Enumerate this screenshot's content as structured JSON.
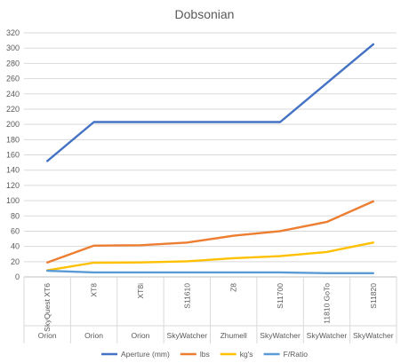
{
  "chart_data": {
    "type": "line",
    "title": "Dobsonian",
    "categories": [
      "SkyQuest XT6",
      "XT8",
      "XT8i",
      "S11610",
      "Z8",
      "S11700",
      "11810 GoTo",
      "S11820"
    ],
    "brands": [
      "Orion",
      "Orion",
      "Orion",
      "SkyWatcher",
      "Zhumell",
      "SkyWatcher",
      "SkyWatcher",
      "SkyWatcher"
    ],
    "ylim": [
      0,
      320
    ],
    "ytick_step": 20,
    "grid": true,
    "legend_position": "bottom",
    "series": [
      {
        "name": "Aperture (mm)",
        "color": "#4472C4",
        "values": [
          152,
          203,
          203,
          203,
          203,
          203,
          254,
          305
        ]
      },
      {
        "name": "lbs",
        "color": "#ED7D31",
        "values": [
          19,
          41,
          41.5,
          45,
          54,
          60,
          72,
          99
        ]
      },
      {
        "name": "kg's",
        "color": "#FFC000",
        "values": [
          8.6,
          18.6,
          19,
          20.5,
          24.5,
          27.2,
          32.7,
          45
        ]
      },
      {
        "name": "F/Ratio",
        "color": "#5B9BD5",
        "values": [
          8,
          5.9,
          5.9,
          5.9,
          5.9,
          5.9,
          4.9,
          4.9
        ]
      }
    ]
  }
}
